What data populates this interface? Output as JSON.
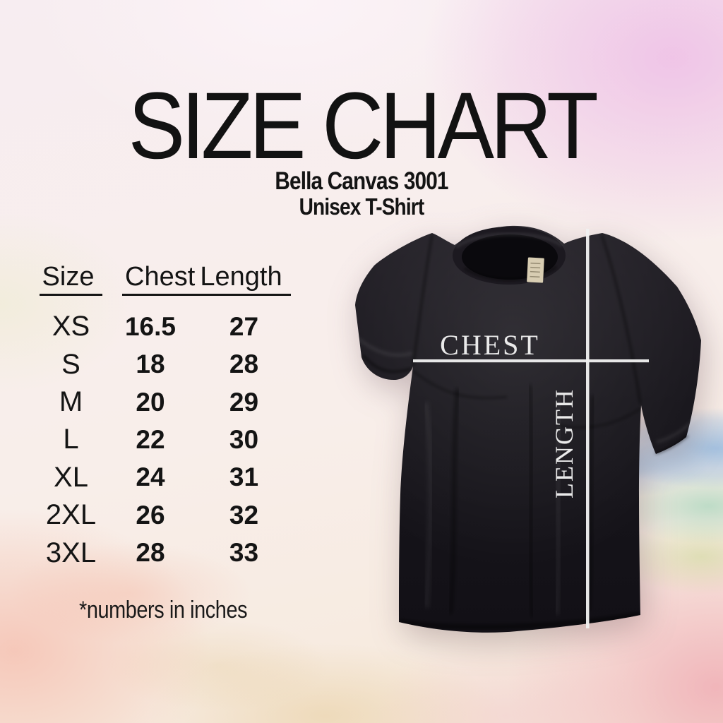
{
  "title": "SIZE CHART",
  "product": {
    "line1": "Bella Canvas 3001",
    "line2": "Unisex T-Shirt"
  },
  "size_table": {
    "headers": [
      "Size",
      "Chest",
      "Length"
    ],
    "rows": [
      [
        "XS",
        "16.5",
        "27"
      ],
      [
        "S",
        "18",
        "28"
      ],
      [
        "M",
        "20",
        "29"
      ],
      [
        "L",
        "22",
        "30"
      ],
      [
        "XL",
        "24",
        "31"
      ],
      [
        "2XL",
        "26",
        "32"
      ],
      [
        "3XL",
        "28",
        "33"
      ]
    ],
    "footnote": "*numbers in inches"
  },
  "shirt_diagram": {
    "chest_label": "CHEST",
    "length_label": "LENGTH",
    "shirt_color": "#17151b",
    "measure_line_color": "#efefef"
  },
  "colors": {
    "text": "#141414",
    "wash_orchid": "#e79ce0",
    "wash_blue": "#6ea5dc",
    "wash_teal": "#78c8a5",
    "wash_rose": "#eb7d96",
    "wash_salmon": "#f39680",
    "wash_tan": "#debc78"
  },
  "chart_data": {
    "type": "table",
    "title": "SIZE CHART",
    "subtitle": "Bella Canvas 3001 Unisex T-Shirt",
    "columns": [
      "Size",
      "Chest",
      "Length"
    ],
    "rows": [
      [
        "XS",
        16.5,
        27
      ],
      [
        "S",
        18,
        28
      ],
      [
        "M",
        20,
        29
      ],
      [
        "L",
        22,
        30
      ],
      [
        "XL",
        24,
        31
      ],
      [
        "2XL",
        26,
        32
      ],
      [
        "3XL",
        28,
        33
      ]
    ],
    "units": "inches",
    "annotations": [
      "CHEST",
      "LENGTH",
      "*numbers in inches"
    ]
  }
}
